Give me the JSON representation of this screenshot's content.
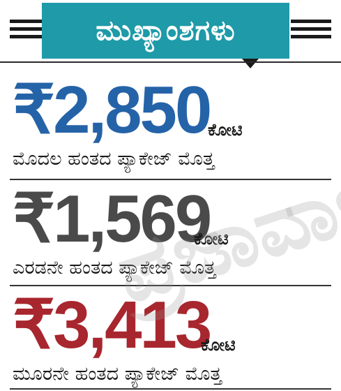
{
  "header": {
    "title": "ಮುಖ್ಯಾಂಶಗಳು"
  },
  "items": [
    {
      "amount": "₹2,850",
      "unit": "ಕೋಟಿ",
      "description": "ಮೊದಲ ಹಂತದ ಪ್ಯಾಕೇಜ್ ಮೊತ್ತ",
      "color": "#2563a8"
    },
    {
      "amount": "₹1,569",
      "unit": "ಕೋಟಿ",
      "description": "ಎರಡನೇ ಹಂತದ ಪ್ಯಾಕೇಜ್ ಮೊತ್ತ",
      "color": "#4a4a4a"
    },
    {
      "amount": "₹3,413",
      "unit": "ಕೋಟಿ",
      "description": "ಮೂರನೇ ಹಂತದ ಪ್ಯಾಕೇಜ್ ಮೊತ್ತ",
      "color": "#a8262e"
    }
  ],
  "watermark": "ಪ್ರಜಾವಾಣಿ",
  "colors": {
    "header_bg": "#1e9aa8",
    "header_text": "#ffffff",
    "rule": "#1a1a1a"
  }
}
